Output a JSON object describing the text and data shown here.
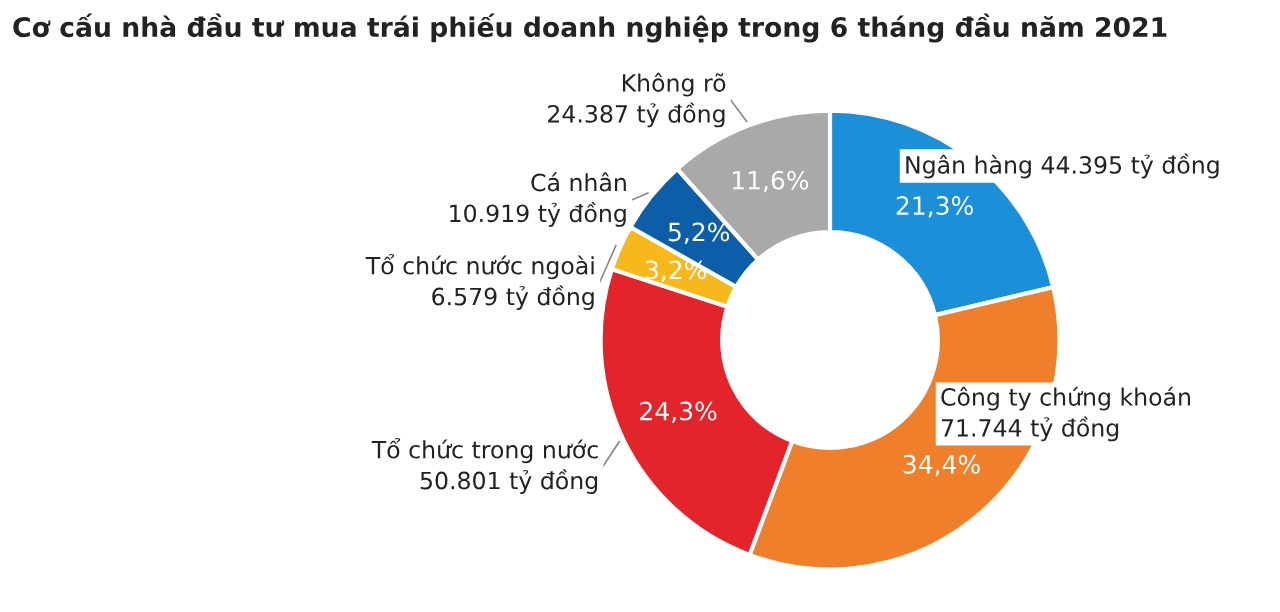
{
  "chart_data": {
    "type": "donut",
    "title": "Cơ cấu nhà đầu tư mua trái phiếu doanh nghiệp trong 6 tháng đầu năm 2021",
    "categories": [
      "Ngân hàng 44.395 tỷ đồng",
      "Công ty chứng khoán\n71.744 tỷ đồng",
      "Tổ chức trong nước\n50.801 tỷ đồng",
      "Tổ chức nước ngoài\n6.579 tỷ đồng",
      "Cá nhân\n10.919 tỷ đồng",
      "Không rõ\n24.387 tỷ đồng"
    ],
    "values": [
      21.3,
      34.4,
      24.3,
      3.2,
      5.2,
      11.6
    ],
    "value_labels": [
      "21,3%",
      "34,4%",
      "24,3%",
      "3,2%",
      "5,2%",
      "11,6%"
    ],
    "colors": [
      "#1b8fd8",
      "#ef7f2b",
      "#e3242b",
      "#f7b81c",
      "#0d5ea8",
      "#a9a9a9"
    ]
  }
}
